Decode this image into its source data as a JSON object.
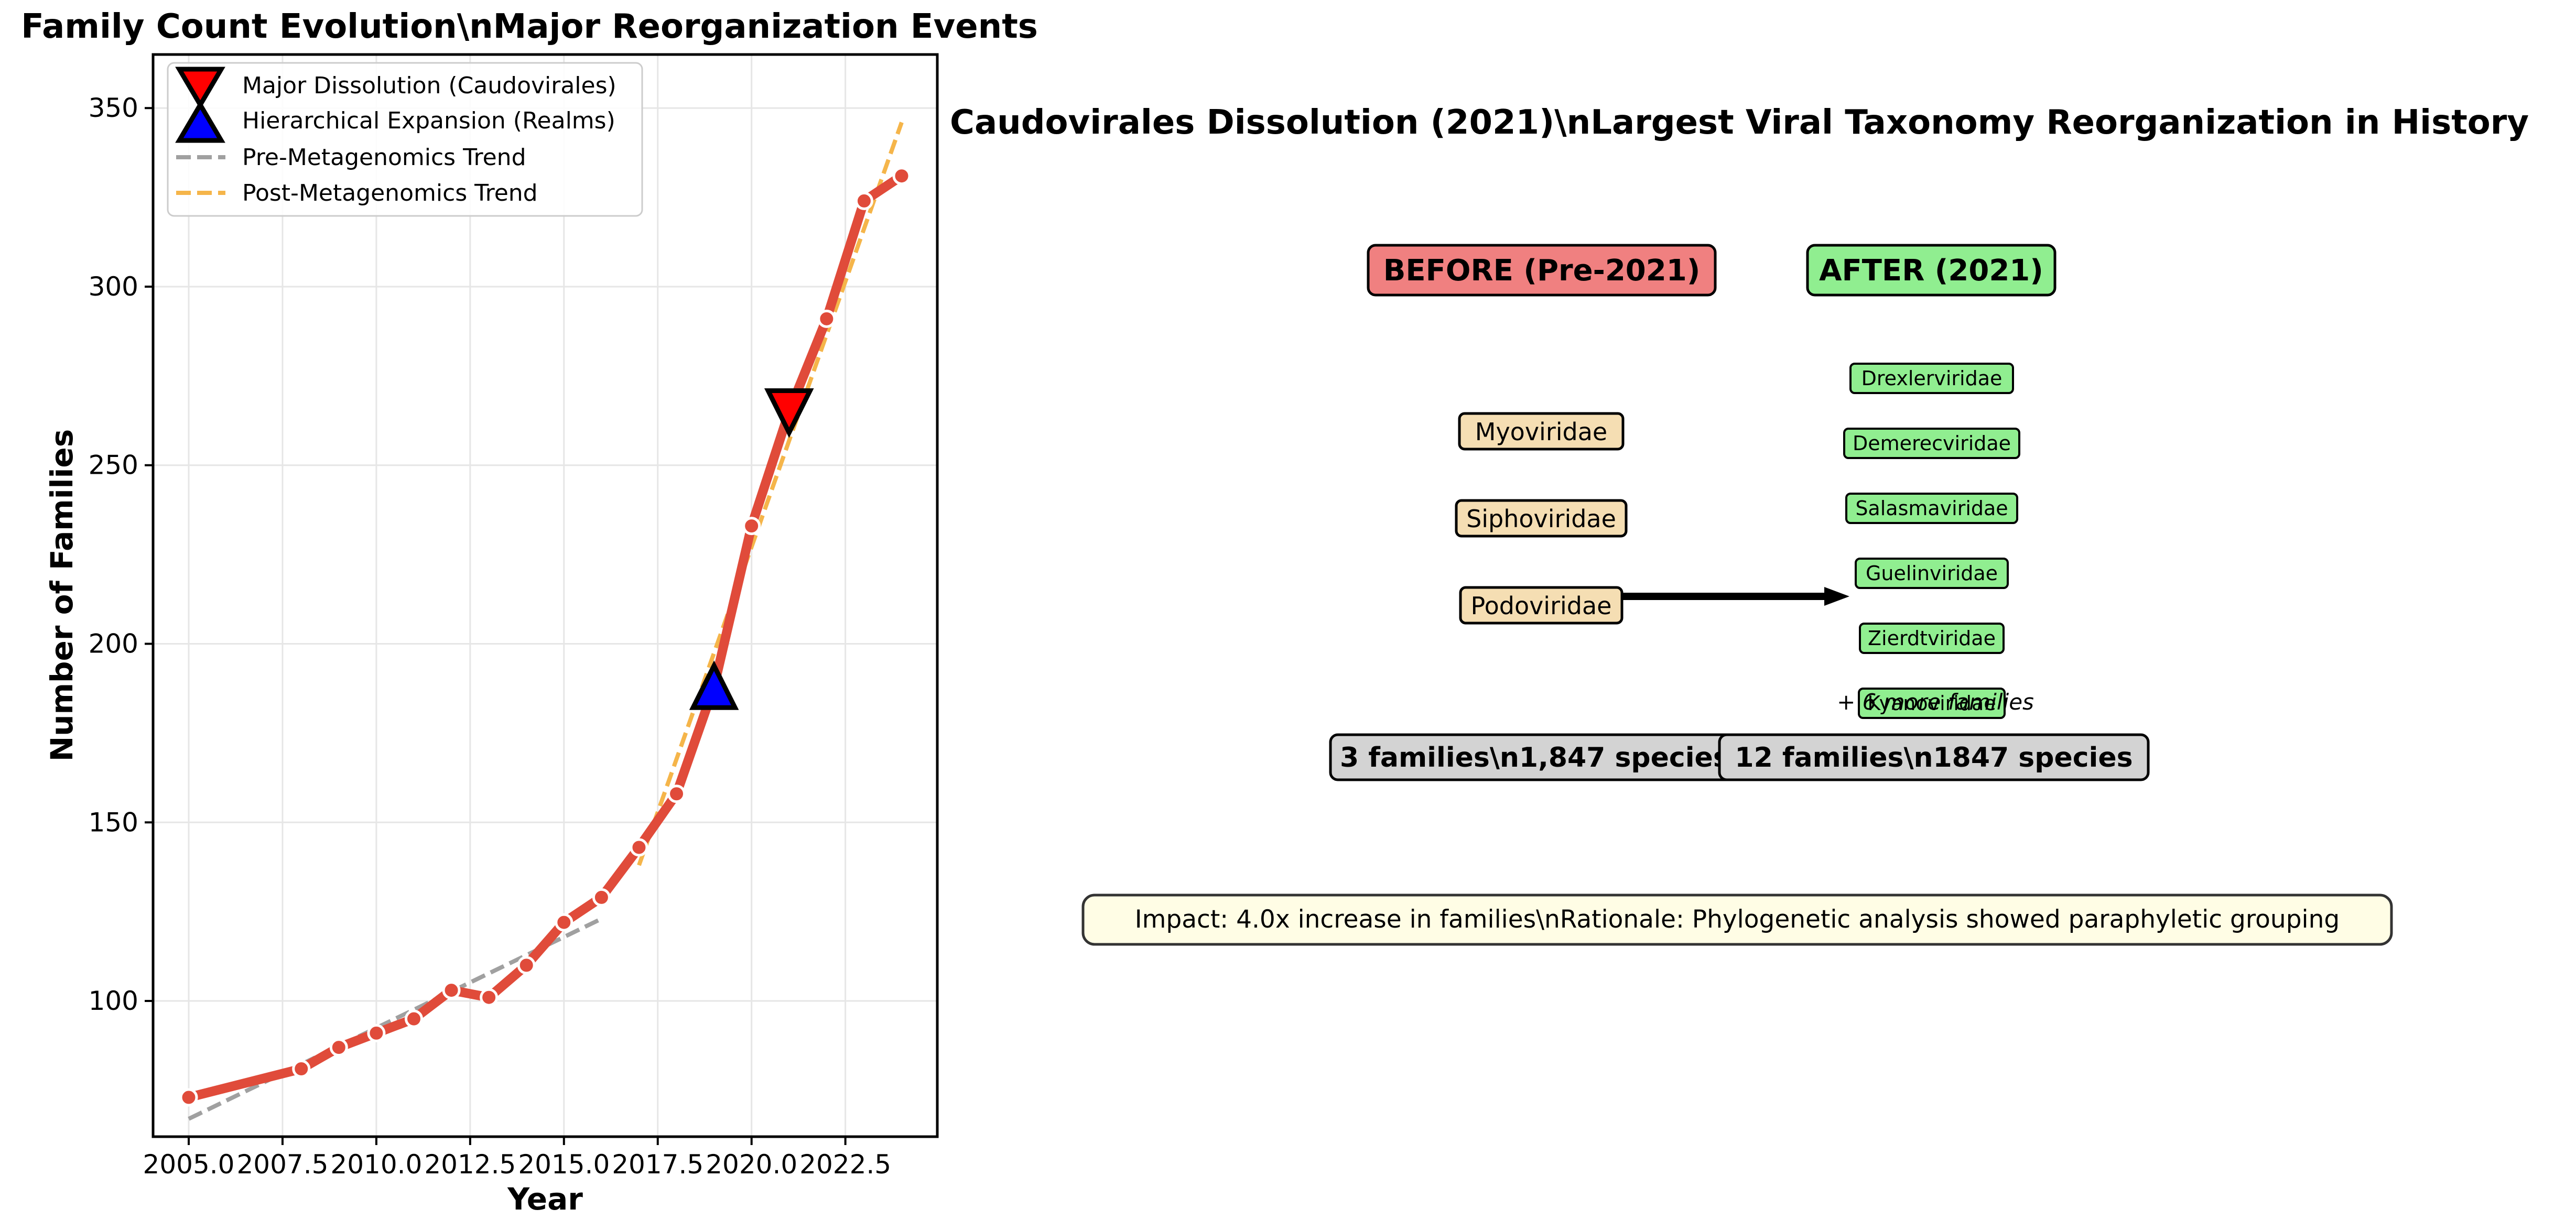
{
  "colors": {
    "main_line": "#e04b3a",
    "marker_face": "#e04b3a",
    "marker_edge": "#ffffff",
    "pre_trend": "#a0a0a0",
    "post_trend": "#f5b54a",
    "dissolution_marker": "#ff0000",
    "expansion_marker": "#0000ff",
    "before_box": "#f08080",
    "after_box": "#90ee90",
    "family_box_before": "#f5deb3",
    "family_box_after": "#90ee90",
    "count_box": "#d3d3d3",
    "impact_box": "#fffde5",
    "grid": "#e6e6e6"
  },
  "chart_data": [
    {
      "type": "line",
      "title": "Family Count Evolution\\nMajor Reorganization Events",
      "xlabel": "Year",
      "ylabel": "Number of Families",
      "xlim": [
        2004.05,
        2024.95
      ],
      "ylim": [
        62.0,
        365.0
      ],
      "xticks": [
        2005.0,
        2007.5,
        2010.0,
        2012.5,
        2015.0,
        2017.5,
        2020.0,
        2022.5
      ],
      "xtick_labels": [
        "2005.0",
        "2007.5",
        "2010.0",
        "2012.5",
        "2015.0",
        "2017.5",
        "2020.0",
        "2022.5"
      ],
      "yticks": [
        100,
        150,
        200,
        250,
        300,
        350
      ],
      "ytick_labels": [
        "100",
        "150",
        "200",
        "250",
        "300",
        "350"
      ],
      "grid": true,
      "legend_position": "top-left",
      "series": [
        {
          "name": "",
          "x": [
            2005,
            2008,
            2009,
            2010,
            2011,
            2012,
            2013,
            2014,
            2015,
            2016,
            2017,
            2018,
            2019,
            2020,
            2021,
            2022,
            2023,
            2024
          ],
          "y": [
            73,
            81,
            87,
            91,
            95,
            103,
            101,
            110,
            122,
            129,
            143,
            158,
            188,
            233,
            265,
            291,
            324,
            331
          ]
        },
        {
          "name": "Pre-Metagenomics Trend",
          "style": "dashed",
          "x": [
            2005,
            2016
          ],
          "y": [
            67,
            123
          ]
        },
        {
          "name": "Post-Metagenomics Trend",
          "style": "dashed",
          "x": [
            2017,
            2024
          ],
          "y": [
            138,
            346
          ]
        }
      ],
      "events": [
        {
          "name": "Major Dissolution (Caudovirales)",
          "marker": "triangle-down",
          "x": 2021,
          "y": 265
        },
        {
          "name": "Hierarchical Expansion (Realms)",
          "marker": "triangle-up",
          "x": 2019,
          "y": 188
        }
      ]
    }
  ],
  "right_panel": {
    "title": "Caudovirales Dissolution (2021)\\nLargest Viral Taxonomy Reorganization in History",
    "before_label": "BEFORE (Pre-2021)",
    "after_label": "AFTER (2021)",
    "before_families": [
      "Myoviridae",
      "Siphoviridae",
      "Podoviridae"
    ],
    "after_families": [
      "Drexlerviridae",
      "Demerecviridae",
      "Salasmaviridae",
      "Guelinviridae",
      "Zierdtviridae",
      "Kyanoviridae"
    ],
    "more_families": "+ 6 more families",
    "before_count": "3 families\\n1,847 species",
    "after_count": "12 families\\n1847 species",
    "impact": "Impact: 4.0x increase in families\\nRationale: Phylogenetic analysis showed paraphyletic grouping"
  }
}
